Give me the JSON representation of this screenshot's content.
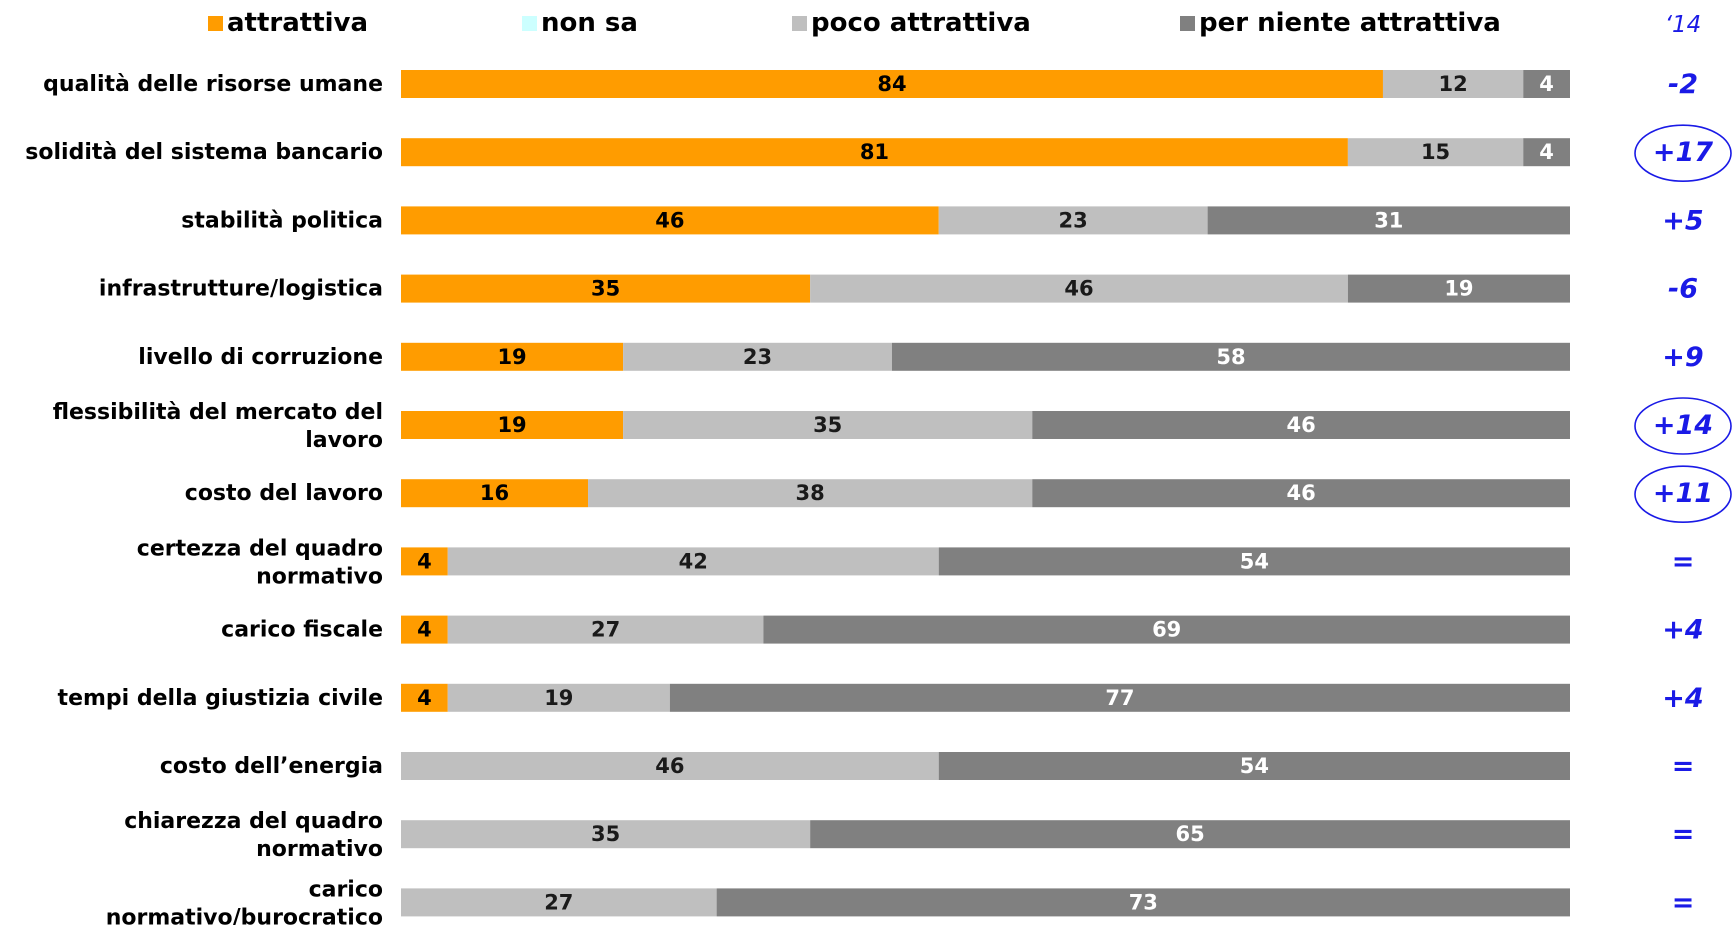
{
  "chart_data": {
    "type": "bar",
    "orientation": "horizontal",
    "stacked": true,
    "legend": {
      "placement": "top",
      "entries": [
        {
          "name": "attrattiva",
          "color": "#FF9C00"
        },
        {
          "name": "non sa",
          "color": "#CCFFFF"
        },
        {
          "name": "poco attrattiva",
          "color": "#BFBFBF"
        },
        {
          "name": "per niente attrattiva",
          "color": "#808080"
        }
      ]
    },
    "categories": [
      "qualità delle risorse umane",
      "solidità del sistema bancario",
      "stabilità politica",
      "infrastrutture/logistica",
      "livello di corruzione",
      "flessibilità del mercato del lavoro",
      "costo del lavoro",
      "certezza del quadro normativo",
      "carico fiscale",
      "tempi della giustizia civile",
      "costo dell’energia",
      "chiarezza del quadro normativo",
      "carico normativo/burocratico"
    ],
    "series": [
      {
        "name": "attrattiva",
        "color": "#FF9C00",
        "values": [
          84,
          81,
          46,
          35,
          19,
          19,
          16,
          4,
          4,
          4,
          0,
          0,
          0
        ]
      },
      {
        "name": "non sa",
        "color": "#CCFFFF",
        "values": [
          0,
          0,
          0,
          0,
          0,
          0,
          0,
          0,
          0,
          0,
          0,
          0,
          0
        ]
      },
      {
        "name": "poco attrattiva",
        "color": "#BFBFBF",
        "values": [
          12,
          15,
          23,
          46,
          23,
          35,
          38,
          42,
          27,
          19,
          46,
          35,
          27
        ]
      },
      {
        "name": "per niente attrattiva",
        "color": "#808080",
        "values": [
          4,
          4,
          31,
          19,
          58,
          46,
          46,
          54,
          69,
          77,
          54,
          65,
          73
        ]
      }
    ],
    "xlim": [
      0,
      100
    ],
    "change_column": {
      "header": "‘14",
      "values": [
        "-2",
        "+17",
        "+5",
        "-6",
        "+9",
        "+14",
        "+11",
        "=",
        "+4",
        "+4",
        "=",
        "=",
        "="
      ],
      "circled": [
        false,
        true,
        false,
        false,
        false,
        true,
        true,
        false,
        false,
        false,
        false,
        false,
        false
      ],
      "color": "#1A1AE6"
    },
    "label_colors": {
      "on_orange": "#000000",
      "on_light": "#1a1a1a",
      "on_dark": "#ffffff"
    }
  }
}
